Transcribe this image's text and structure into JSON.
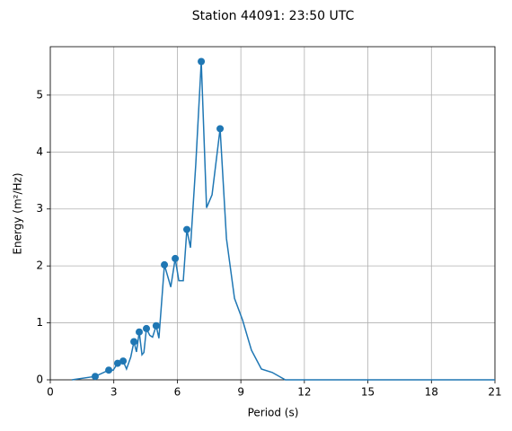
{
  "chart_data": {
    "type": "line",
    "title": "Station 44091: 23:50 UTC",
    "xlabel": "Period (s)",
    "ylabel": "Energy (m²/Hz)",
    "xlim": [
      0,
      21
    ],
    "ylim": [
      0,
      5.85
    ],
    "xticks": [
      0,
      3,
      6,
      9,
      12,
      15,
      18,
      21
    ],
    "yticks": [
      0,
      1,
      2,
      3,
      4,
      5
    ],
    "grid": true,
    "series": [
      {
        "color": "#1f77b4",
        "x": [
          1.02,
          2.12,
          2.76,
          2.97,
          3.18,
          3.44,
          3.6,
          3.8,
          3.95,
          4.07,
          4.2,
          4.33,
          4.42,
          4.54,
          4.7,
          4.83,
          5.0,
          5.13,
          5.39,
          5.69,
          5.9,
          6.07,
          6.28,
          6.45,
          6.62,
          6.87,
          7.13,
          7.38,
          7.64,
          8.02,
          8.32,
          8.7,
          9.08,
          9.5,
          9.97,
          10.48,
          11.1,
          21
        ],
        "values": [
          0,
          0.06,
          0.17,
          0.17,
          0.29,
          0.33,
          0.19,
          0.4,
          0.67,
          0.49,
          0.84,
          0.44,
          0.48,
          0.9,
          0.78,
          0.75,
          0.95,
          0.73,
          2.02,
          1.63,
          2.13,
          1.74,
          1.74,
          2.64,
          2.32,
          3.78,
          5.59,
          3.02,
          3.25,
          4.41,
          2.48,
          1.43,
          1.05,
          0.52,
          0.19,
          0.13,
          0,
          0
        ]
      },
      {
        "type": "scatter",
        "color": "#1f77b4",
        "x": [
          2.12,
          2.76,
          3.18,
          3.44,
          3.95,
          4.2,
          4.54,
          5.0,
          5.39,
          5.9,
          6.45,
          7.13,
          8.02
        ],
        "values": [
          0.06,
          0.17,
          0.29,
          0.33,
          0.67,
          0.84,
          0.9,
          0.95,
          2.02,
          2.13,
          2.64,
          5.59,
          4.41
        ]
      }
    ]
  }
}
